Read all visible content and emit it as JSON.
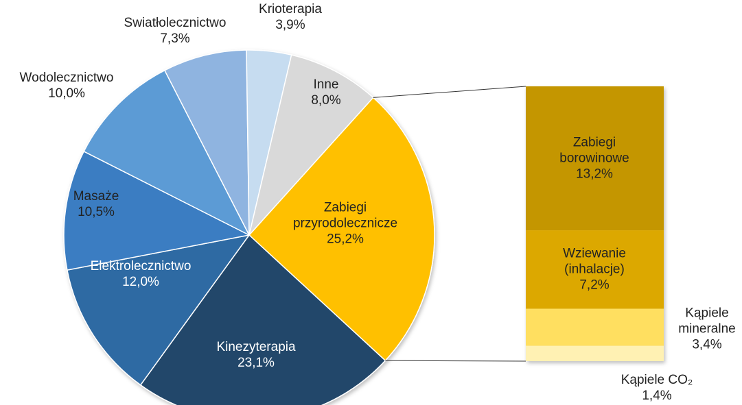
{
  "chart_data": {
    "type": "pie",
    "categories": [
      "Zabiegi przyrodolecznicze",
      "Kinezyterapia",
      "Elektrolecznictwo",
      "Masaże",
      "Wodolecznictwo",
      "Swiatłolecznictwo",
      "Krioterapia",
      "Inne"
    ],
    "values": [
      25.2,
      23.1,
      12.0,
      10.5,
      10.0,
      7.3,
      3.9,
      8.0
    ],
    "value_labels": [
      "25,2%",
      "23,1%",
      "12,0%",
      "10,5%",
      "10,0%",
      "7,3%",
      "3,9%",
      "8,0%"
    ],
    "colors": [
      "#ffc000",
      "#23476a",
      "#2e6aa3",
      "#3a7dc2",
      "#5b9bd5",
      "#8fb4e0",
      "#c6dcf0",
      "#d9d9d9"
    ],
    "breakdown": {
      "type": "bar",
      "categories": [
        "Zabiegi borowinowe",
        "Wziewanie (inhalacje)",
        "Kąpiele mineralne",
        "Kąpiele CO₂"
      ],
      "values": [
        13.2,
        7.2,
        3.4,
        1.4
      ],
      "value_labels": [
        "13,2%",
        "7,2%",
        "3,4%",
        "1,4%"
      ],
      "colors": [
        "#c49600",
        "#dca800",
        "#ffdf60",
        "#fff1b3"
      ]
    }
  }
}
